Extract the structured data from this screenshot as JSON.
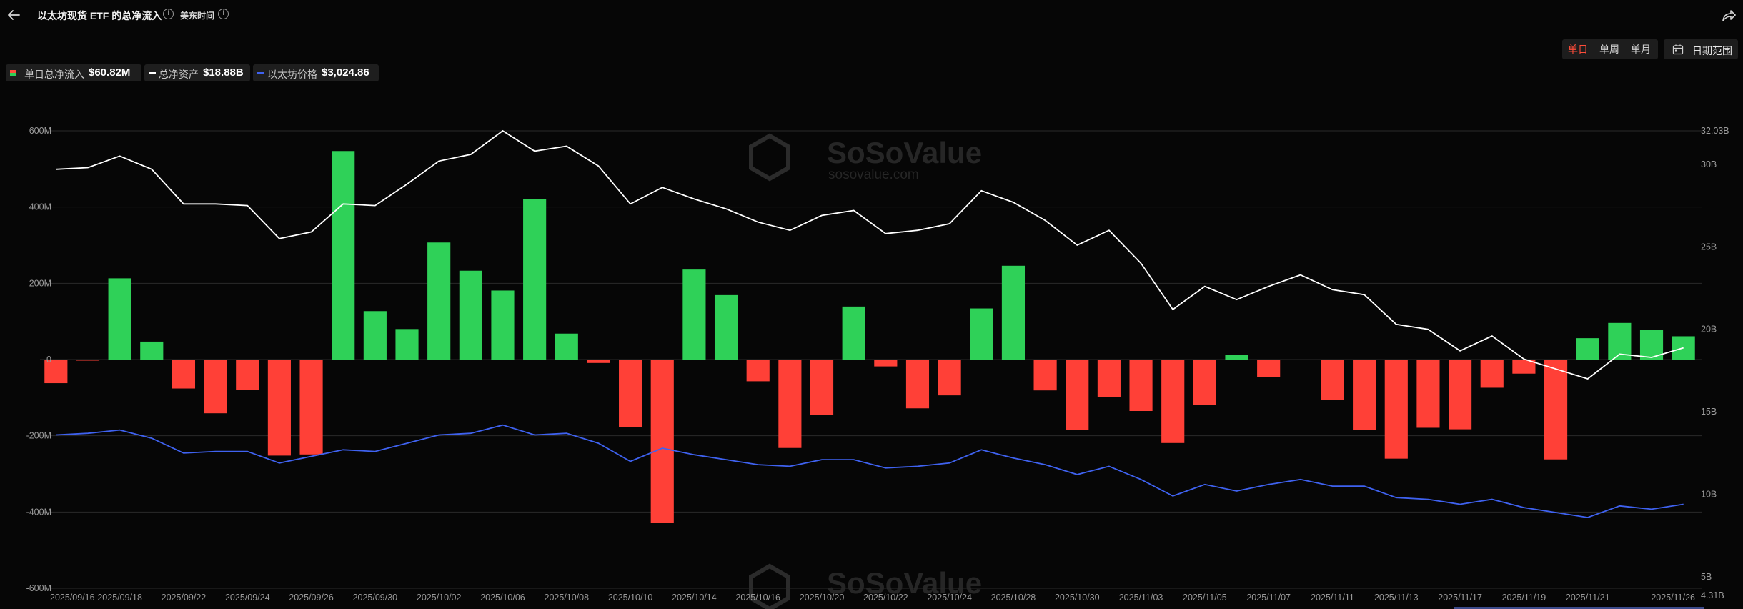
{
  "header": {
    "title": "以太坊现货 ETF 的总净流入",
    "timezone_label": "美东时间",
    "info_glyph": "i"
  },
  "controls": {
    "periods": [
      {
        "label": "单日",
        "active": true
      },
      {
        "label": "单周",
        "active": false
      },
      {
        "label": "单月",
        "active": false
      }
    ],
    "date_range_label": "日期范围"
  },
  "legend": [
    {
      "name": "单日总净流入",
      "value": "$60.82M",
      "colors": [
        "#ff4d3a",
        "#2fd158"
      ]
    },
    {
      "name": "总净资产",
      "value": "$18.88B",
      "color": "#ffffff"
    },
    {
      "name": "以太坊价格",
      "value": "$3,024.86",
      "color": "#3f62f0"
    }
  ],
  "watermark": {
    "brand": "SoSoValue",
    "domain": "sosovalue.com"
  },
  "colors": {
    "inflow": "#2fd158",
    "outflow": "#ff4037",
    "net_assets": "#ffffff",
    "eth_price": "#3f62f0",
    "grid": "#2a2a2a"
  },
  "chart_data": {
    "type": "bar",
    "dates": [
      "2025/09/16",
      "2025/09/17",
      "2025/09/18",
      "2025/09/19",
      "2025/09/22",
      "2025/09/23",
      "2025/09/24",
      "2025/09/25",
      "2025/09/26",
      "2025/09/29",
      "2025/09/30",
      "2025/10/01",
      "2025/10/02",
      "2025/10/03",
      "2025/10/06",
      "2025/10/07",
      "2025/10/08",
      "2025/10/09",
      "2025/10/10",
      "2025/10/13",
      "2025/10/14",
      "2025/10/15",
      "2025/10/16",
      "2025/10/17",
      "2025/10/20",
      "2025/10/21",
      "2025/10/22",
      "2025/10/23",
      "2025/10/24",
      "2025/10/27",
      "2025/10/28",
      "2025/10/29",
      "2025/10/30",
      "2025/10/31",
      "2025/11/03",
      "2025/11/04",
      "2025/11/05",
      "2025/11/06",
      "2025/11/07",
      "2025/11/10",
      "2025/11/11",
      "2025/11/12",
      "2025/11/13",
      "2025/11/14",
      "2025/11/17",
      "2025/11/18",
      "2025/11/19",
      "2025/11/20",
      "2025/11/21",
      "2025/11/24",
      "2025/11/25",
      "2025/11/26"
    ],
    "x_tick_labels": [
      "2025/09/16",
      "2025/09/18",
      "2025/09/22",
      "2025/09/24",
      "2025/09/26",
      "2025/09/30",
      "2025/10/02",
      "2025/10/06",
      "2025/10/08",
      "2025/10/10",
      "2025/10/14",
      "2025/10/16",
      "2025/10/20",
      "2025/10/22",
      "2025/10/24",
      "2025/10/28",
      "2025/10/30",
      "2025/11/03",
      "2025/11/05",
      "2025/11/07",
      "2025/11/11",
      "2025/11/13",
      "2025/11/17",
      "2025/11/19",
      "2025/11/21",
      "2025/11/26"
    ],
    "series": [
      {
        "name": "单日总净流入",
        "type": "bar",
        "axis": "left",
        "unit": "M",
        "values": [
          -62,
          -2,
          213,
          47,
          -76,
          -141,
          -80,
          -252,
          -249,
          547,
          127,
          80,
          307,
          233,
          181,
          421,
          68,
          -9,
          -177,
          -429,
          236,
          169,
          -57,
          -232,
          -146,
          139,
          -18,
          -128,
          -94,
          134,
          246,
          -81,
          -184,
          -98,
          -135,
          -219,
          -119,
          12,
          -46,
          0,
          -106,
          -184,
          -260,
          -179,
          -183,
          -74,
          -37,
          -262,
          56,
          96,
          78,
          61
        ]
      },
      {
        "name": "总净资产",
        "type": "line",
        "axis": "right",
        "unit": "B",
        "values": [
          29.7,
          29.8,
          30.5,
          29.7,
          27.6,
          27.6,
          27.5,
          25.5,
          25.9,
          27.6,
          27.5,
          28.8,
          30.2,
          30.6,
          32.03,
          30.8,
          31.1,
          29.9,
          27.6,
          28.6,
          27.9,
          27.3,
          26.5,
          26.0,
          26.9,
          27.2,
          25.8,
          26.0,
          26.4,
          28.4,
          27.7,
          26.6,
          25.1,
          26.0,
          24.0,
          21.2,
          22.6,
          21.8,
          22.6,
          23.3,
          22.4,
          22.1,
          20.3,
          20.0,
          18.7,
          19.6,
          18.2,
          17.6,
          17.0,
          18.5,
          18.3,
          18.88
        ]
      },
      {
        "name": "以太坊价格",
        "type": "line",
        "axis": "right",
        "unit": "B",
        "values": [
          13.6,
          13.7,
          13.9,
          13.4,
          12.5,
          12.6,
          12.6,
          11.9,
          12.3,
          12.7,
          12.6,
          13.1,
          13.6,
          13.7,
          14.2,
          13.6,
          13.7,
          13.1,
          12.0,
          12.8,
          12.4,
          12.1,
          11.8,
          11.7,
          12.1,
          12.1,
          11.6,
          11.7,
          11.9,
          12.7,
          12.2,
          11.8,
          11.2,
          11.7,
          10.9,
          9.9,
          10.6,
          10.2,
          10.6,
          10.9,
          10.5,
          10.5,
          9.8,
          9.7,
          9.4,
          9.7,
          9.2,
          8.9,
          8.6,
          9.3,
          9.1,
          9.4
        ]
      }
    ],
    "left_axis": {
      "ticks": [
        "600M",
        "400M",
        "200M",
        "0",
        "-200M",
        "-400M",
        "-600M"
      ],
      "min": -600,
      "max": 600
    },
    "right_axis": {
      "ticks": [
        "32.03B",
        "30B",
        "25B",
        "20B",
        "15B",
        "10B",
        "5B",
        "4.31B"
      ],
      "min": 4.31,
      "max": 32.03
    },
    "grid": true
  }
}
